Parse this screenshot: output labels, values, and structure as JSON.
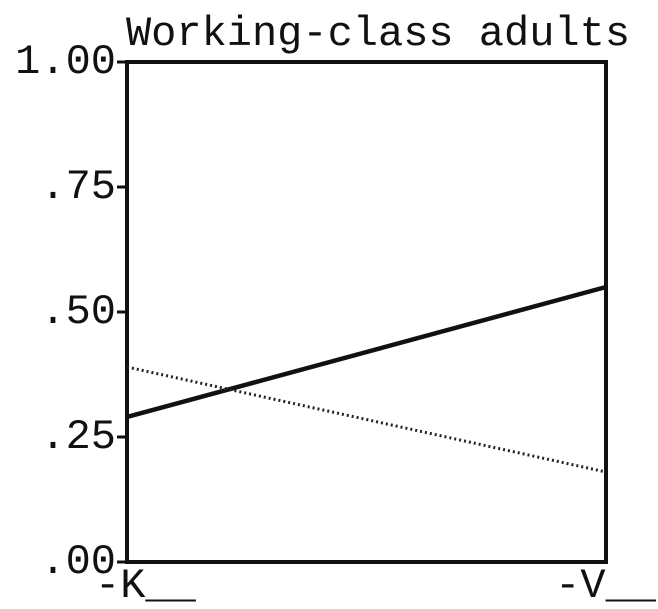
{
  "chart_data": {
    "type": "line",
    "title": "Working-class adults",
    "categories": [
      "-K__",
      "-V__"
    ],
    "series": [
      {
        "color": "#111111",
        "style": "solid",
        "values": [
          0.29,
          0.55
        ]
      },
      {
        "color": "#222222",
        "style": "dotted",
        "values": [
          0.39,
          0.18
        ]
      }
    ],
    "ylim": [
      0,
      1
    ],
    "yticks": [
      {
        "value": 0,
        "label": ".00"
      },
      {
        "value": 0.25,
        "label": ".25"
      },
      {
        "value": 0.5,
        "label": ".50"
      },
      {
        "value": 0.75,
        "label": ".75"
      },
      {
        "value": 1,
        "label": "1.00"
      }
    ],
    "grid": false
  }
}
